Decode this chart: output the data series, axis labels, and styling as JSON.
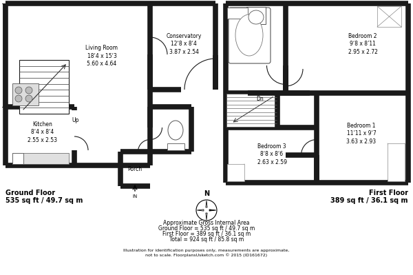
{
  "bg_color": "#ffffff",
  "wall_color": "#1a1a1a",
  "wall_lw": 5.5,
  "thin_lw": 0.8,
  "ground_floor_label": "Ground Floor",
  "ground_floor_area": "535 sq ft / 49.7 sq m",
  "first_floor_label": "First Floor",
  "first_floor_area": "389 sq ft / 36.1 sq m",
  "living_room_label": "Living Room\n18‘4 x 15‘3\n5.60 x 4.64",
  "kitchen_label": "Kitchen\n8‘4 x 8‘4\n2.55 x 2.53",
  "conservatory_label": "Conservatory\n12‘8 x 8‘4\n3.87 x 2.54",
  "porch_label": "Porch",
  "up_label": "Up",
  "dn_label": "Dn",
  "bedroom1_label": "Bedroom 1\n11’11 x 9‘7\n3.63 x 2.93",
  "bedroom2_label": "Bedroom 2\n9‘8 x 8’11\n2.95 x 2.72",
  "bedroom3_label": "Bedroom 3\n8‘8 x 8‘6\n2.63 x 2.59",
  "area_heading": "Approximate Gross Internal Area",
  "area_line1": "Ground Floor = 535 sq ft / 49.7 sq m",
  "area_line2": "First Floor = 389 sq ft / 36.1 sq m",
  "area_line3": "Total = 924 sq ft / 85.8 sq m",
  "disclaimer": "Illustration for identification purposes only, measurements are approximate,\nnot to scale. FloorplansUsketch.com © 2015 (ID161672)",
  "north_label": "N"
}
